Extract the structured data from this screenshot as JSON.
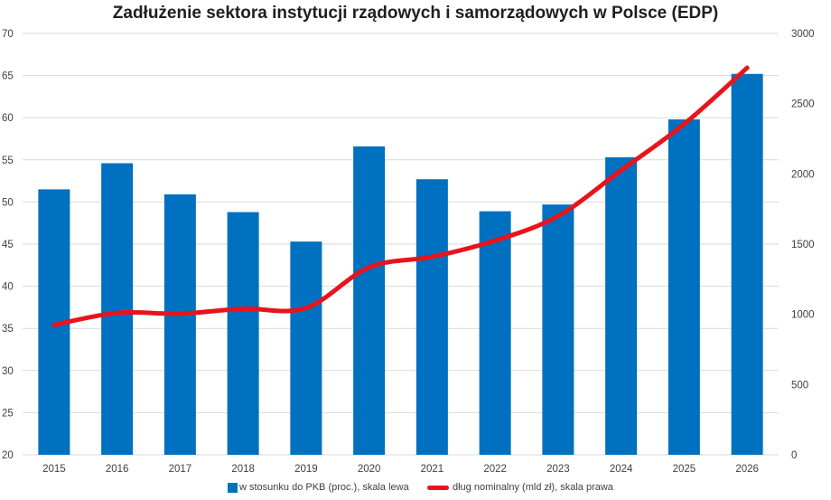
{
  "chart_data": {
    "type": "bar",
    "title": "Zadłużenie sektora instytucji rządowych i samorządowych w Polsce (EDP)",
    "categories": [
      "2015",
      "2016",
      "2017",
      "2018",
      "2019",
      "2020",
      "2021",
      "2022",
      "2023",
      "2024",
      "2025",
      "2026"
    ],
    "series": [
      {
        "name": "w stosunku do PKB (proc.), skala lewa",
        "type": "bar",
        "axis": "left",
        "color": "#0070C0",
        "values": [
          51.5,
          54.6,
          50.9,
          48.8,
          45.3,
          56.6,
          52.7,
          48.9,
          49.7,
          55.3,
          59.8,
          65.2
        ]
      },
      {
        "name": "dług nominalny (mld zł), skala prawa",
        "type": "line",
        "axis": "right",
        "color": "#E8141C",
        "values": [
          925,
          1010,
          1005,
          1040,
          1045,
          1335,
          1410,
          1525,
          1700,
          2025,
          2355,
          2755
        ]
      }
    ],
    "y_left": {
      "min": 20,
      "max": 70,
      "ticks": [
        20,
        25,
        30,
        35,
        40,
        45,
        50,
        55,
        60,
        65,
        70
      ]
    },
    "y_right": {
      "min": 0,
      "max": 3000,
      "ticks": [
        0,
        500,
        1000,
        1500,
        2000,
        2500,
        3000
      ]
    },
    "grid": true,
    "legend_position": "bottom"
  }
}
